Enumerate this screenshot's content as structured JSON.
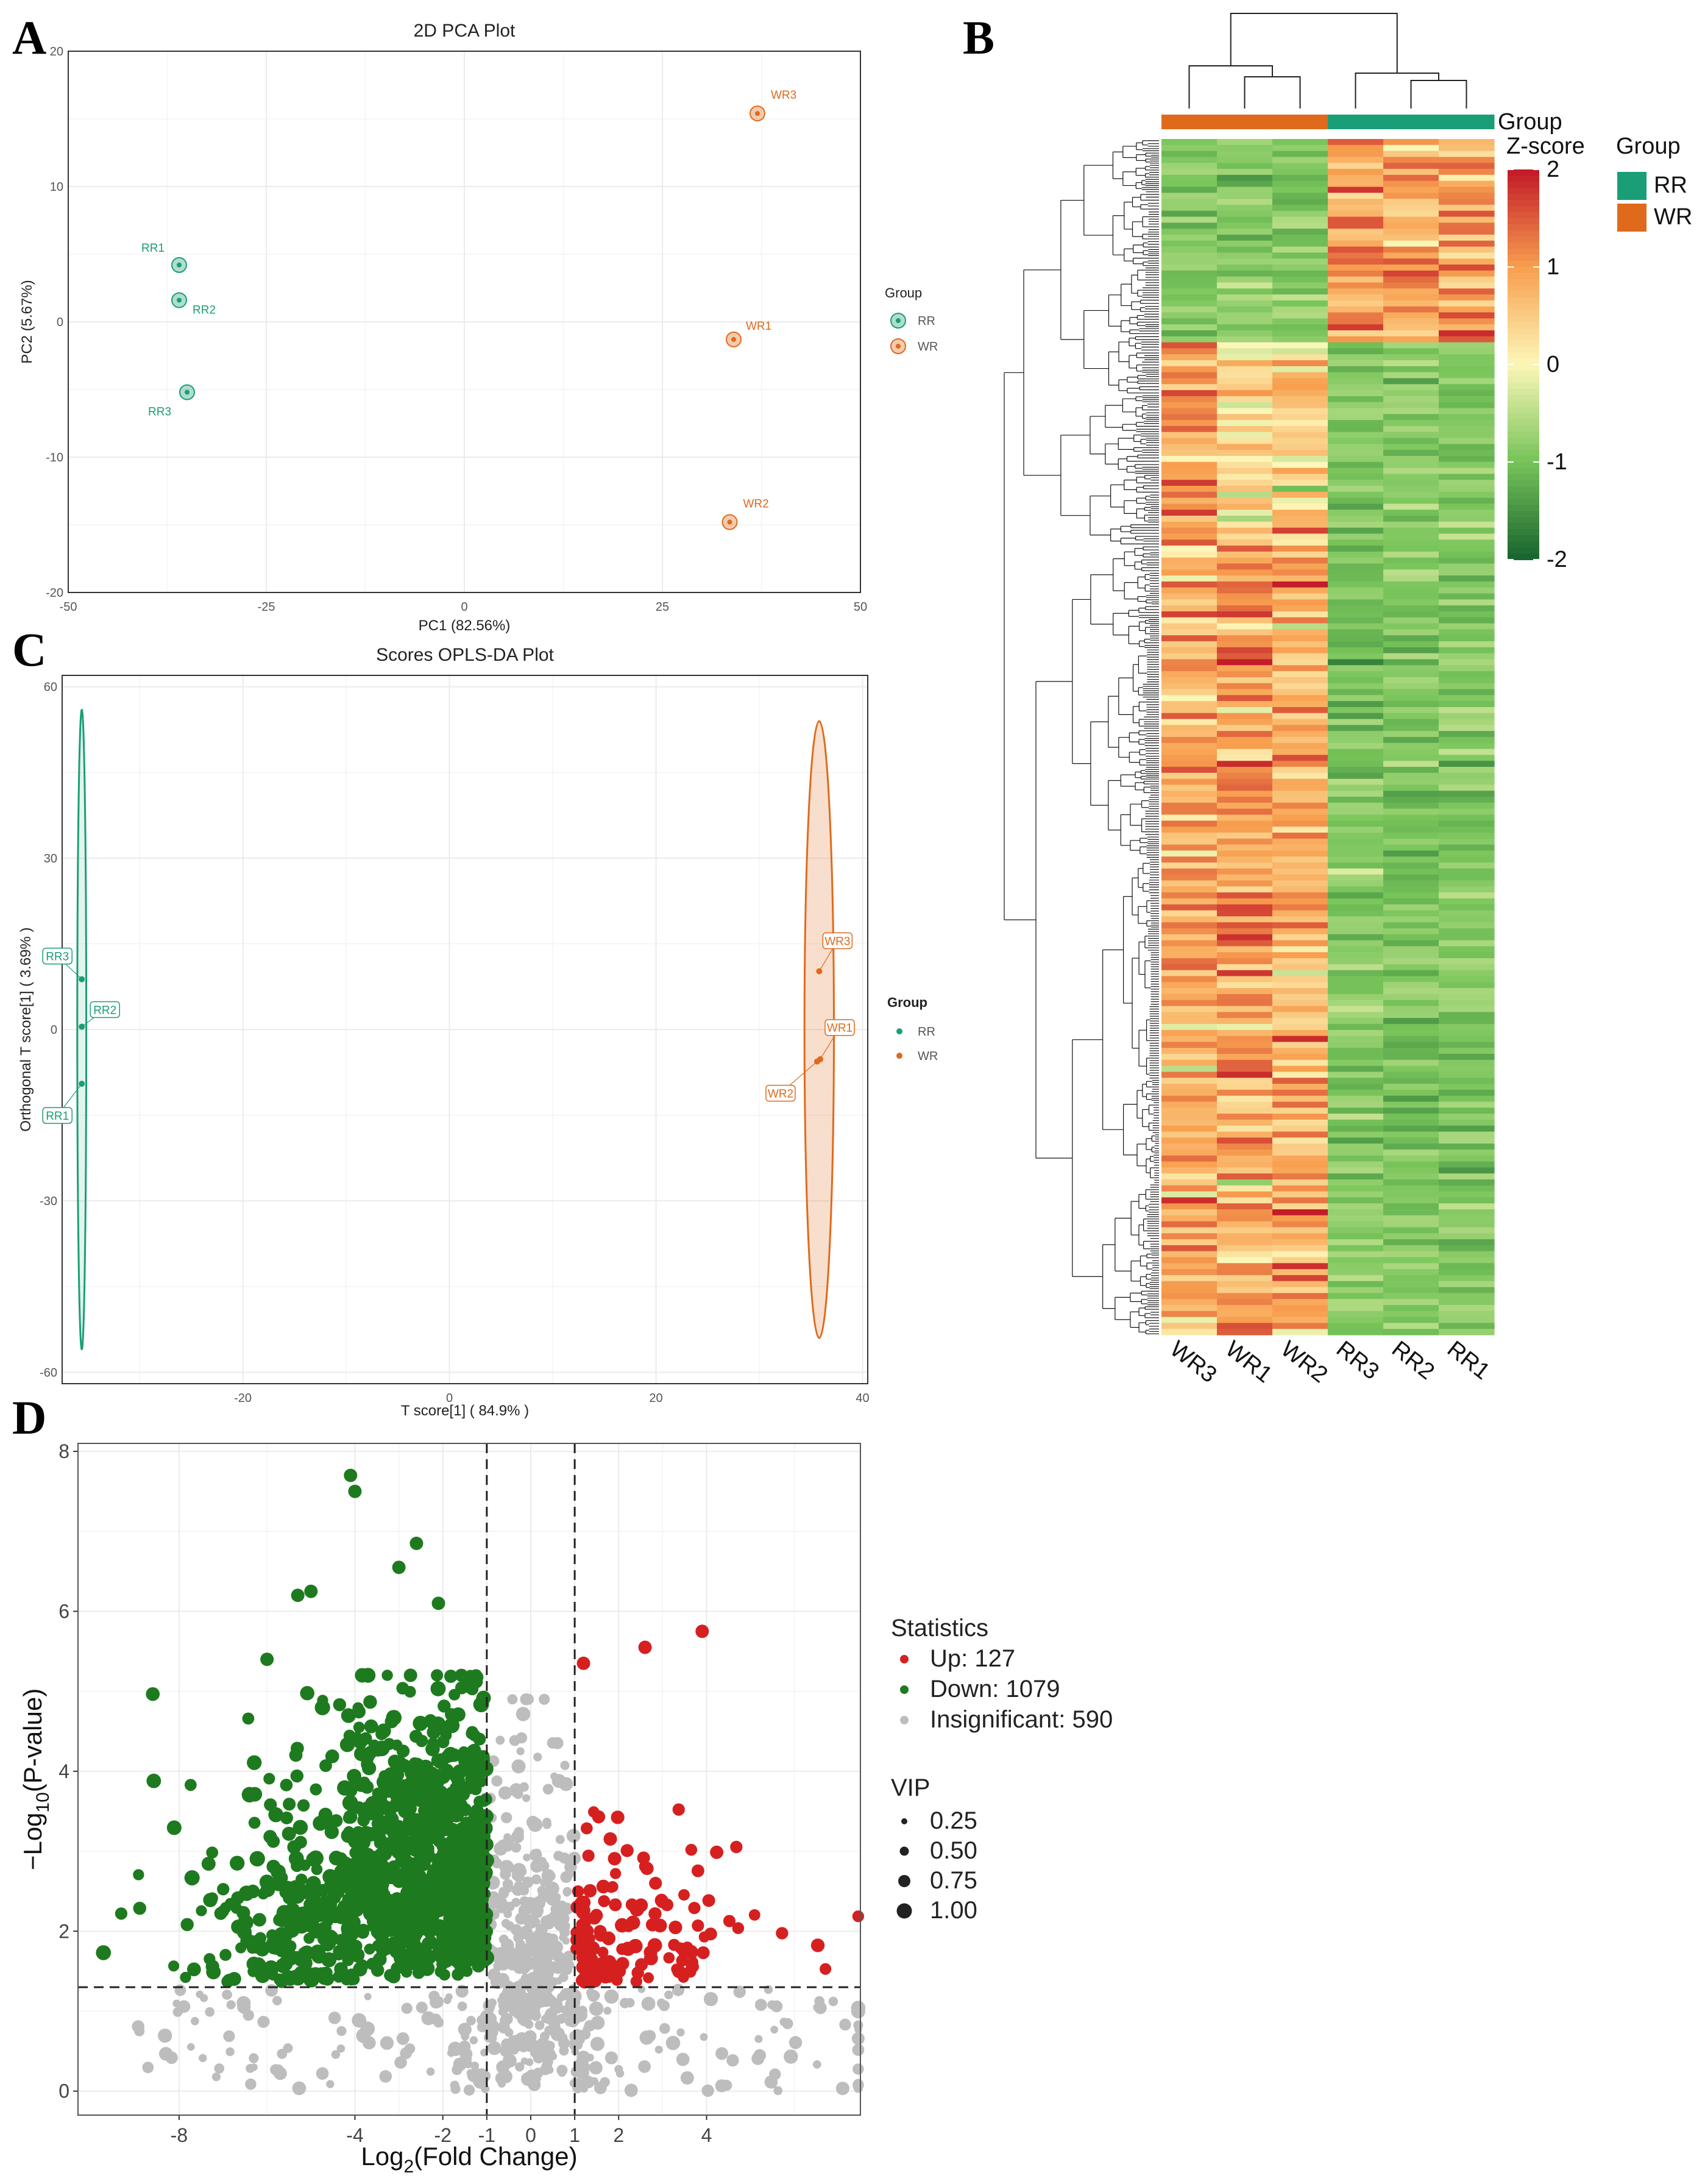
{
  "colors": {
    "RR": "#1a9e77",
    "WR": "#e06a1b",
    "up": "#d62020",
    "down": "#1e7a1e",
    "insig": "#bdbdbd"
  },
  "panels": {
    "a": "A",
    "b": "B",
    "c": "C",
    "d": "D"
  },
  "chart_data": [
    {
      "id": "A",
      "type": "scatter",
      "title": "2D PCA Plot",
      "xlabel": "PC1 (82.56%)",
      "ylabel": "PC2 (5.67%)",
      "xlim": [
        -50,
        50
      ],
      "ylim": [
        -20,
        20
      ],
      "xticks": [
        -50,
        -25,
        0,
        25,
        50
      ],
      "yticks": [
        -20,
        -10,
        0,
        10,
        20
      ],
      "legend_title": "Group",
      "legend": [
        "RR",
        "WR"
      ],
      "points": [
        {
          "label": "RR1",
          "group": "RR",
          "x": -36,
          "y": 4.2
        },
        {
          "label": "RR2",
          "group": "RR",
          "x": -36,
          "y": 1.6
        },
        {
          "label": "RR3",
          "group": "RR",
          "x": -35,
          "y": -5.2
        },
        {
          "label": "WR3",
          "group": "WR",
          "x": 37,
          "y": 15.4
        },
        {
          "label": "WR1",
          "group": "WR",
          "x": 34,
          "y": -1.3
        },
        {
          "label": "WR2",
          "group": "WR",
          "x": 33.5,
          "y": -14.8
        }
      ]
    },
    {
      "id": "C",
      "type": "scatter",
      "title": "Scores OPLS-DA Plot",
      "xlabel": "T score[1] ( 84.9% )",
      "ylabel": "Orthogonal T score[1] ( 3.69% )",
      "xlim": [
        -40,
        40
      ],
      "ylim": [
        -60,
        60
      ],
      "xticks": [
        -20,
        0,
        20,
        40
      ],
      "yticks": [
        -60,
        -30,
        0,
        30,
        60
      ],
      "legend_title": "Group",
      "legend": [
        "RR",
        "WR"
      ],
      "points": [
        {
          "label": "RR3",
          "group": "RR",
          "x": -35.6,
          "y": 8.8
        },
        {
          "label": "RR2",
          "group": "RR",
          "x": -35.6,
          "y": 0.5
        },
        {
          "label": "RR1",
          "group": "RR",
          "x": -35.6,
          "y": -9.5
        },
        {
          "label": "WR3",
          "group": "WR",
          "x": 35.8,
          "y": 10.2
        },
        {
          "label": "WR1",
          "group": "WR",
          "x": 35.9,
          "y": -5.2
        },
        {
          "label": "WR2",
          "group": "WR",
          "x": 35.6,
          "y": -5.6
        }
      ],
      "ellipses": [
        {
          "group": "RR",
          "cx": -35.6,
          "ry_top": 56,
          "ry_bottom": -56,
          "half_width": 0.2
        },
        {
          "group": "WR",
          "cx": 35.8,
          "ry_top": 54,
          "ry_bottom": -54,
          "half_width": 0.6
        }
      ]
    },
    {
      "id": "B",
      "type": "heatmap",
      "columns": [
        "WR3",
        "WR1",
        "WR2",
        "RR3",
        "RR2",
        "RR1"
      ],
      "column_groups": [
        "WR",
        "WR",
        "WR",
        "RR",
        "RR",
        "RR"
      ],
      "group_annotation_label": "Group",
      "scale_title": "Z-score",
      "scale_ticks": [
        2,
        1,
        0,
        -1,
        -2
      ],
      "legend_title": "Group",
      "legend": [
        "RR",
        "WR"
      ]
    },
    {
      "id": "D",
      "type": "scatter",
      "xlabel": "Log2(Fold Change)",
      "ylabel": "-Log10(P-value)",
      "xlim": [
        -10.3,
        7.5
      ],
      "ylim": [
        -0.3,
        8.1
      ],
      "xticks": [
        -8,
        -4,
        -2,
        -1,
        0,
        1,
        2,
        4
      ],
      "yticks": [
        0,
        2,
        4,
        6,
        8
      ],
      "thresholds": {
        "fc": [
          -1,
          1
        ],
        "p": 1.3
      },
      "stats_title": "Statistics",
      "stats": [
        {
          "name": "Up",
          "label": "Up: 127",
          "count": 127
        },
        {
          "name": "Down",
          "label": "Down: 1079",
          "count": 1079
        },
        {
          "name": "Insignificant",
          "label": "Insignificant: 590",
          "count": 590
        }
      ],
      "vip_title": "VIP",
      "vip": [
        "0.25",
        "0.50",
        "0.75",
        "1.00"
      ],
      "highlight_points": [
        {
          "x": -4.1,
          "y": 7.7
        },
        {
          "x": -4.0,
          "y": 7.5
        },
        {
          "x": -2.6,
          "y": 6.85
        },
        {
          "x": -3.0,
          "y": 6.55
        },
        {
          "x": -5.0,
          "y": 6.25
        },
        {
          "x": -5.3,
          "y": 6.2
        },
        {
          "x": -2.1,
          "y": 6.1
        },
        {
          "x": 3.9,
          "y": 5.75
        },
        {
          "x": 2.6,
          "y": 5.55
        },
        {
          "x": 1.2,
          "y": 5.35
        },
        {
          "x": -6.0,
          "y": 5.4
        }
      ]
    }
  ]
}
